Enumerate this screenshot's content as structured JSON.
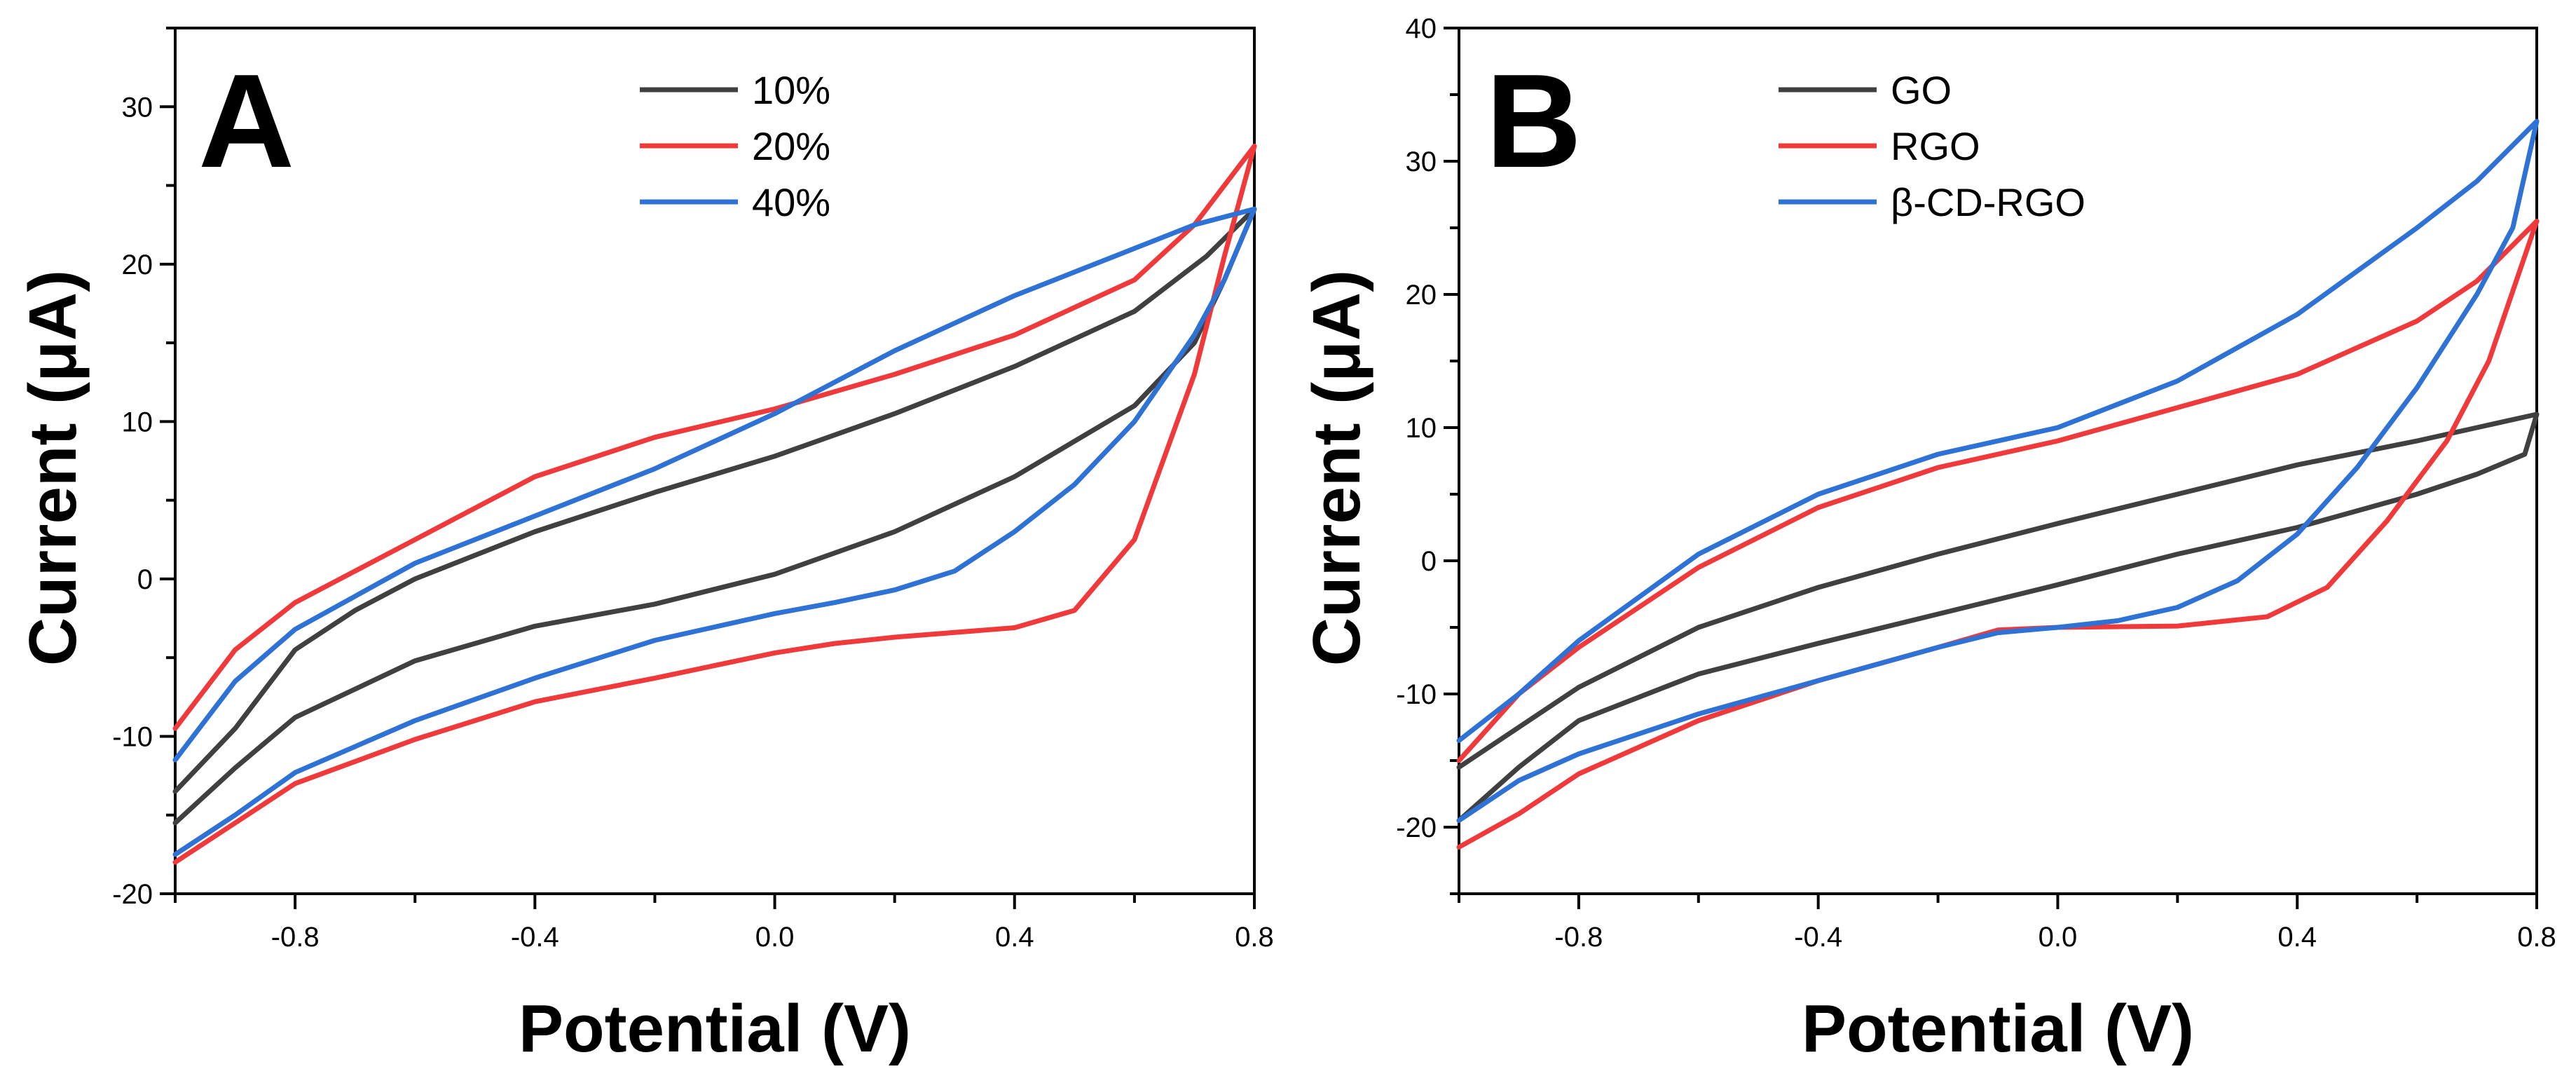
{
  "chart_data": [
    {
      "type": "line",
      "panel_label": "A",
      "xlabel": "Potential (V)",
      "ylabel": "Current (μA)",
      "xlim": [
        -1.0,
        0.8
      ],
      "ylim": [
        -20,
        35
      ],
      "xticks": [
        -0.8,
        -0.4,
        0.0,
        0.4,
        0.8
      ],
      "xtick_labels": [
        "-0.8",
        "-0.4",
        "0.0",
        "0.4",
        "0.8"
      ],
      "yticks": [
        -20,
        -10,
        0,
        10,
        20,
        30
      ],
      "ytick_labels": [
        "-20",
        "-10",
        "0",
        "10",
        "20",
        "30"
      ],
      "legend_position": "top-center",
      "series": [
        {
          "name": "10%",
          "color": "#404040",
          "points": [
            [
              -1.0,
              -15.5
            ],
            [
              -0.9,
              -12.0
            ],
            [
              -0.8,
              -8.8
            ],
            [
              -0.6,
              -5.2
            ],
            [
              -0.4,
              -3.0
            ],
            [
              -0.2,
              -1.6
            ],
            [
              0.0,
              0.3
            ],
            [
              0.2,
              3.0
            ],
            [
              0.4,
              6.5
            ],
            [
              0.6,
              11.0
            ],
            [
              0.7,
              15.0
            ],
            [
              0.75,
              19.0
            ],
            [
              0.8,
              23.5
            ],
            [
              0.72,
              20.5
            ],
            [
              0.6,
              17.0
            ],
            [
              0.4,
              13.5
            ],
            [
              0.2,
              10.5
            ],
            [
              0.0,
              7.8
            ],
            [
              -0.2,
              5.5
            ],
            [
              -0.4,
              3.0
            ],
            [
              -0.6,
              0.0
            ],
            [
              -0.7,
              -2.0
            ],
            [
              -0.8,
              -4.5
            ],
            [
              -0.9,
              -9.5
            ],
            [
              -1.0,
              -13.5
            ]
          ]
        },
        {
          "name": "20%",
          "color": "#f0393a",
          "points": [
            [
              -1.0,
              -18.0
            ],
            [
              -0.9,
              -15.5
            ],
            [
              -0.8,
              -13.0
            ],
            [
              -0.6,
              -10.2
            ],
            [
              -0.4,
              -7.8
            ],
            [
              -0.2,
              -6.3
            ],
            [
              0.0,
              -4.7
            ],
            [
              0.1,
              -4.1
            ],
            [
              0.2,
              -3.7
            ],
            [
              0.4,
              -3.1
            ],
            [
              0.5,
              -2.0
            ],
            [
              0.6,
              2.5
            ],
            [
              0.7,
              13.0
            ],
            [
              0.75,
              20.5
            ],
            [
              0.8,
              27.5
            ],
            [
              0.7,
              22.5
            ],
            [
              0.6,
              19.0
            ],
            [
              0.4,
              15.5
            ],
            [
              0.2,
              13.0
            ],
            [
              0.0,
              10.8
            ],
            [
              -0.2,
              9.0
            ],
            [
              -0.4,
              6.5
            ],
            [
              -0.6,
              2.5
            ],
            [
              -0.8,
              -1.5
            ],
            [
              -0.9,
              -4.5
            ],
            [
              -1.0,
              -9.5
            ]
          ]
        },
        {
          "name": "40%",
          "color": "#2f72d6",
          "points": [
            [
              -1.0,
              -17.5
            ],
            [
              -0.9,
              -15.0
            ],
            [
              -0.8,
              -12.3
            ],
            [
              -0.6,
              -9.0
            ],
            [
              -0.4,
              -6.3
            ],
            [
              -0.2,
              -3.9
            ],
            [
              0.0,
              -2.2
            ],
            [
              0.1,
              -1.5
            ],
            [
              0.2,
              -0.7
            ],
            [
              0.3,
              0.5
            ],
            [
              0.4,
              3.0
            ],
            [
              0.5,
              6.0
            ],
            [
              0.6,
              10.0
            ],
            [
              0.7,
              15.5
            ],
            [
              0.75,
              19.0
            ],
            [
              0.8,
              23.5
            ],
            [
              0.7,
              22.5
            ],
            [
              0.6,
              21.0
            ],
            [
              0.4,
              18.0
            ],
            [
              0.2,
              14.5
            ],
            [
              0.0,
              10.5
            ],
            [
              -0.2,
              7.0
            ],
            [
              -0.4,
              4.0
            ],
            [
              -0.6,
              1.0
            ],
            [
              -0.8,
              -3.2
            ],
            [
              -0.9,
              -6.5
            ],
            [
              -1.0,
              -11.5
            ]
          ]
        }
      ]
    },
    {
      "type": "line",
      "panel_label": "B",
      "xlabel": "Potential (V)",
      "ylabel": "Current (μA)",
      "xlim": [
        -1.0,
        0.8
      ],
      "ylim": [
        -25,
        40
      ],
      "xticks": [
        -0.8,
        -0.4,
        0.0,
        0.4,
        0.8
      ],
      "xtick_labels": [
        "-0.8",
        "-0.4",
        "0.0",
        "0.4",
        "0.8"
      ],
      "yticks": [
        -20,
        -10,
        0,
        10,
        20,
        30,
        40
      ],
      "ytick_labels": [
        "-20",
        "-10",
        "0",
        "10",
        "20",
        "30",
        "40"
      ],
      "legend_position": "top-center",
      "series": [
        {
          "name": "GO",
          "color": "#404040",
          "points": [
            [
              -1.0,
              -19.5
            ],
            [
              -0.9,
              -15.5
            ],
            [
              -0.8,
              -12.0
            ],
            [
              -0.6,
              -8.5
            ],
            [
              -0.4,
              -6.2
            ],
            [
              -0.2,
              -4.0
            ],
            [
              0.0,
              -1.8
            ],
            [
              0.2,
              0.5
            ],
            [
              0.4,
              2.5
            ],
            [
              0.6,
              5.0
            ],
            [
              0.7,
              6.5
            ],
            [
              0.78,
              8.0
            ],
            [
              0.8,
              11.0
            ],
            [
              0.7,
              10.0
            ],
            [
              0.6,
              9.0
            ],
            [
              0.4,
              7.2
            ],
            [
              0.2,
              5.0
            ],
            [
              0.0,
              2.8
            ],
            [
              -0.2,
              0.5
            ],
            [
              -0.4,
              -2.0
            ],
            [
              -0.6,
              -5.0
            ],
            [
              -0.8,
              -9.5
            ],
            [
              -0.9,
              -12.5
            ],
            [
              -1.0,
              -15.5
            ]
          ]
        },
        {
          "name": "RGO",
          "color": "#f0393a",
          "points": [
            [
              -1.0,
              -21.5
            ],
            [
              -0.9,
              -19.0
            ],
            [
              -0.8,
              -16.0
            ],
            [
              -0.6,
              -12.0
            ],
            [
              -0.4,
              -9.0
            ],
            [
              -0.2,
              -6.5
            ],
            [
              -0.1,
              -5.2
            ],
            [
              0.0,
              -5.0
            ],
            [
              0.2,
              -4.9
            ],
            [
              0.35,
              -4.2
            ],
            [
              0.45,
              -2.0
            ],
            [
              0.55,
              3.0
            ],
            [
              0.65,
              9.0
            ],
            [
              0.72,
              15.0
            ],
            [
              0.8,
              25.5
            ],
            [
              0.7,
              21.0
            ],
            [
              0.6,
              18.0
            ],
            [
              0.4,
              14.0
            ],
            [
              0.2,
              11.5
            ],
            [
              0.0,
              9.0
            ],
            [
              -0.2,
              7.0
            ],
            [
              -0.4,
              4.0
            ],
            [
              -0.6,
              -0.5
            ],
            [
              -0.8,
              -6.5
            ],
            [
              -0.9,
              -10.0
            ],
            [
              -1.0,
              -15.0
            ]
          ]
        },
        {
          "name": "β-CD-RGO",
          "color": "#2f72d6",
          "points": [
            [
              -1.0,
              -19.5
            ],
            [
              -0.9,
              -16.5
            ],
            [
              -0.8,
              -14.5
            ],
            [
              -0.6,
              -11.5
            ],
            [
              -0.4,
              -9.0
            ],
            [
              -0.2,
              -6.5
            ],
            [
              -0.1,
              -5.4
            ],
            [
              0.0,
              -5.0
            ],
            [
              0.1,
              -4.5
            ],
            [
              0.2,
              -3.5
            ],
            [
              0.3,
              -1.5
            ],
            [
              0.4,
              2.0
            ],
            [
              0.5,
              7.0
            ],
            [
              0.6,
              13.0
            ],
            [
              0.7,
              20.0
            ],
            [
              0.76,
              25.0
            ],
            [
              0.8,
              33.0
            ],
            [
              0.7,
              28.5
            ],
            [
              0.6,
              25.0
            ],
            [
              0.4,
              18.5
            ],
            [
              0.2,
              13.5
            ],
            [
              0.0,
              10.0
            ],
            [
              -0.2,
              8.0
            ],
            [
              -0.4,
              5.0
            ],
            [
              -0.6,
              0.5
            ],
            [
              -0.8,
              -6.0
            ],
            [
              -0.9,
              -10.0
            ],
            [
              -1.0,
              -13.5
            ]
          ]
        }
      ]
    }
  ]
}
